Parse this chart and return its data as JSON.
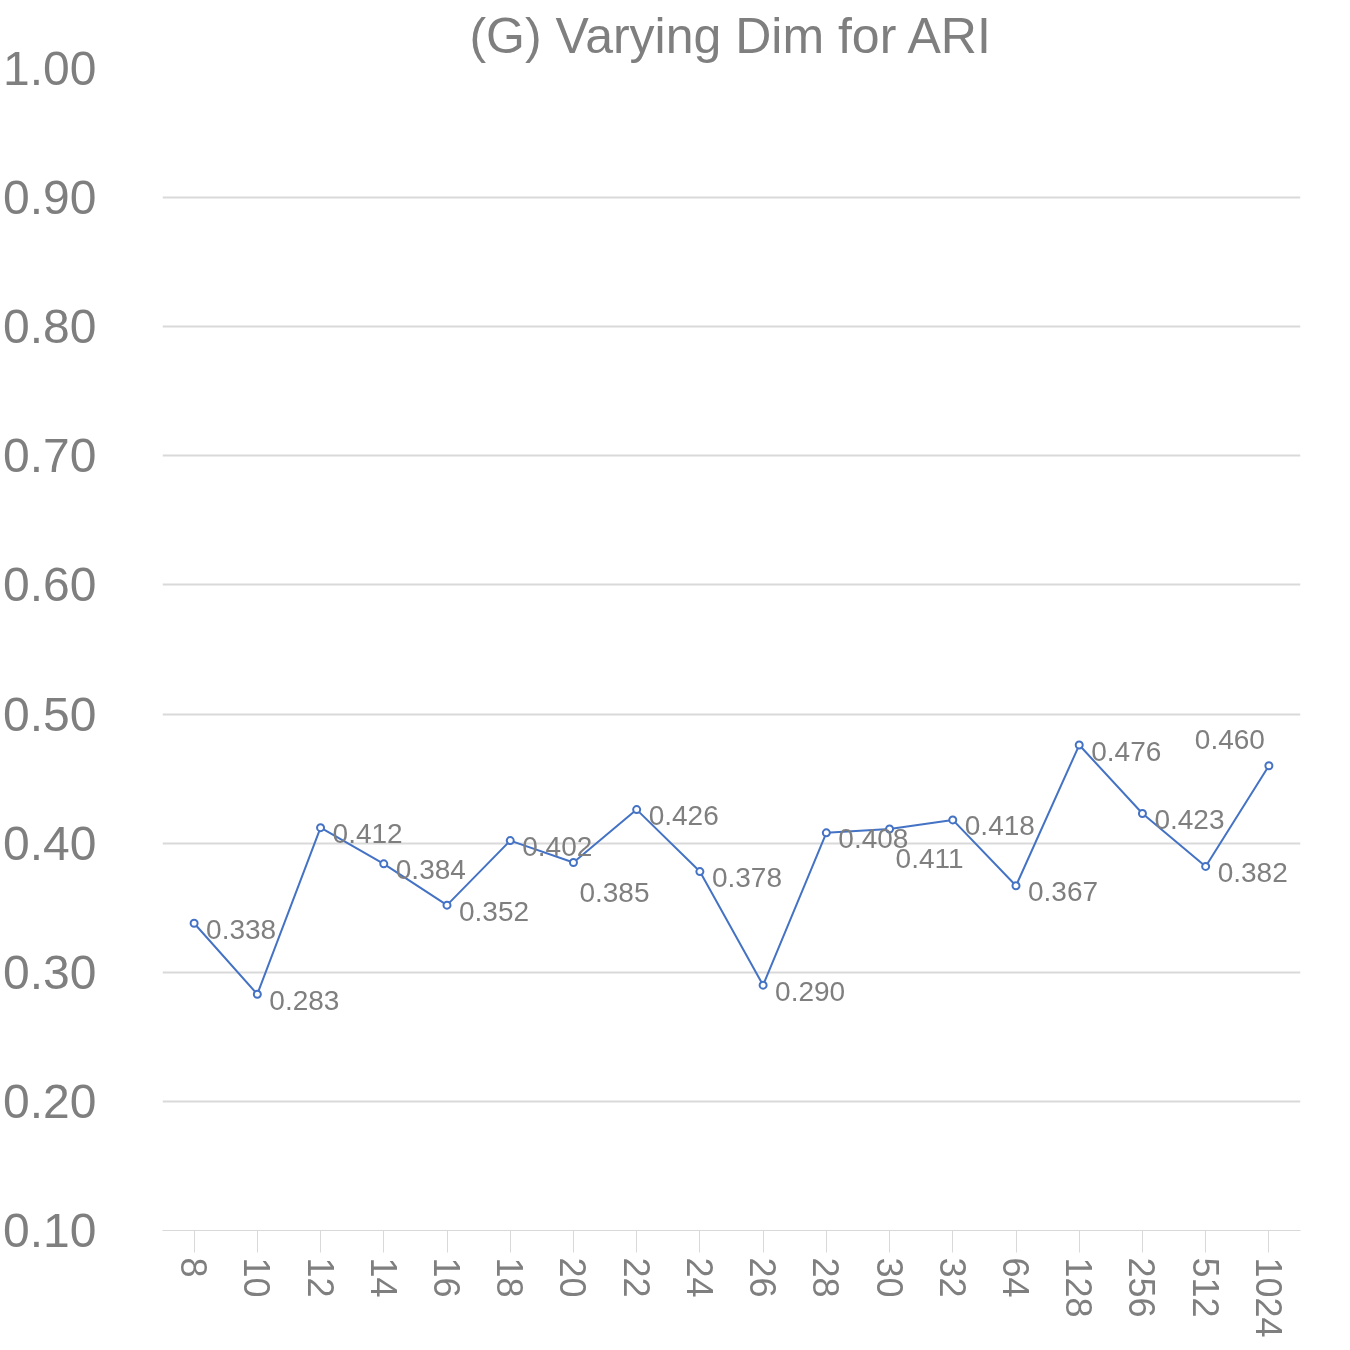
{
  "chart_data": {
    "type": "line",
    "title": "(G) Varying Dim for ARI",
    "categories": [
      "8",
      "10",
      "12",
      "14",
      "16",
      "18",
      "20",
      "22",
      "24",
      "26",
      "28",
      "30",
      "32",
      "64",
      "128",
      "256",
      "512",
      "1024"
    ],
    "series": [
      {
        "color": "#4472c4",
        "values": [
          0.338,
          0.283,
          0.412,
          0.384,
          0.352,
          0.402,
          0.385,
          0.426,
          0.378,
          0.29,
          0.408,
          0.411,
          0.418,
          0.367,
          0.476,
          0.423,
          0.382,
          0.46
        ],
        "value_labels": [
          "0.338",
          "0.283",
          "0.412",
          "0.384",
          "0.352",
          "0.402",
          "0.385",
          "0.426",
          "0.378",
          "0.290",
          "0.408",
          "0.411",
          "0.418",
          "0.367",
          "0.476",
          "0.423",
          "0.382",
          "0.460"
        ]
      }
    ],
    "ylim": [
      0.1,
      1.0
    ],
    "yticks": [
      {
        "value": 0.1,
        "label": "0.10"
      },
      {
        "value": 0.2,
        "label": "0.20"
      },
      {
        "value": 0.3,
        "label": "0.30"
      },
      {
        "value": 0.4,
        "label": "0.40"
      },
      {
        "value": 0.5,
        "label": "0.50"
      },
      {
        "value": 0.6,
        "label": "0.60"
      },
      {
        "value": 0.7,
        "label": "0.70"
      },
      {
        "value": 0.8,
        "label": "0.80"
      },
      {
        "value": 0.9,
        "label": "0.90"
      },
      {
        "value": 1.0,
        "label": "1.00"
      }
    ],
    "grid": "y",
    "marker": "circle",
    "line_style": "solid"
  }
}
